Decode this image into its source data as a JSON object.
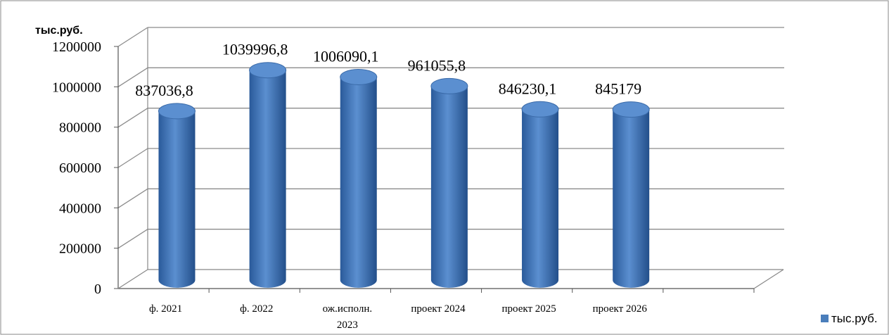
{
  "chart_data": {
    "type": "bar",
    "title": "",
    "unit_label": "тыс.руб.",
    "categories": [
      "ф. 2021",
      "ф. 2022",
      "ож.исполн. 2023",
      "проект 2024",
      "проект 2025",
      "проект 2026"
    ],
    "series": [
      {
        "name": "тыс.руб.",
        "values": [
          837036.8,
          1039996.8,
          1006090.1,
          961055.8,
          846230.1,
          845179
        ],
        "labels": [
          "837036,8",
          "1039996,8",
          "1006090,1",
          "961055,8",
          "846230,1",
          "845179"
        ],
        "color": "#4a7ebb"
      }
    ],
    "y_ticks": [
      "0",
      "200000",
      "400000",
      "600000",
      "800000",
      "1000000",
      "1200000"
    ],
    "ylim": [
      0,
      1200000
    ],
    "grid": true,
    "legend": {
      "position": "bottom-right",
      "label": "тыс.руб."
    }
  }
}
